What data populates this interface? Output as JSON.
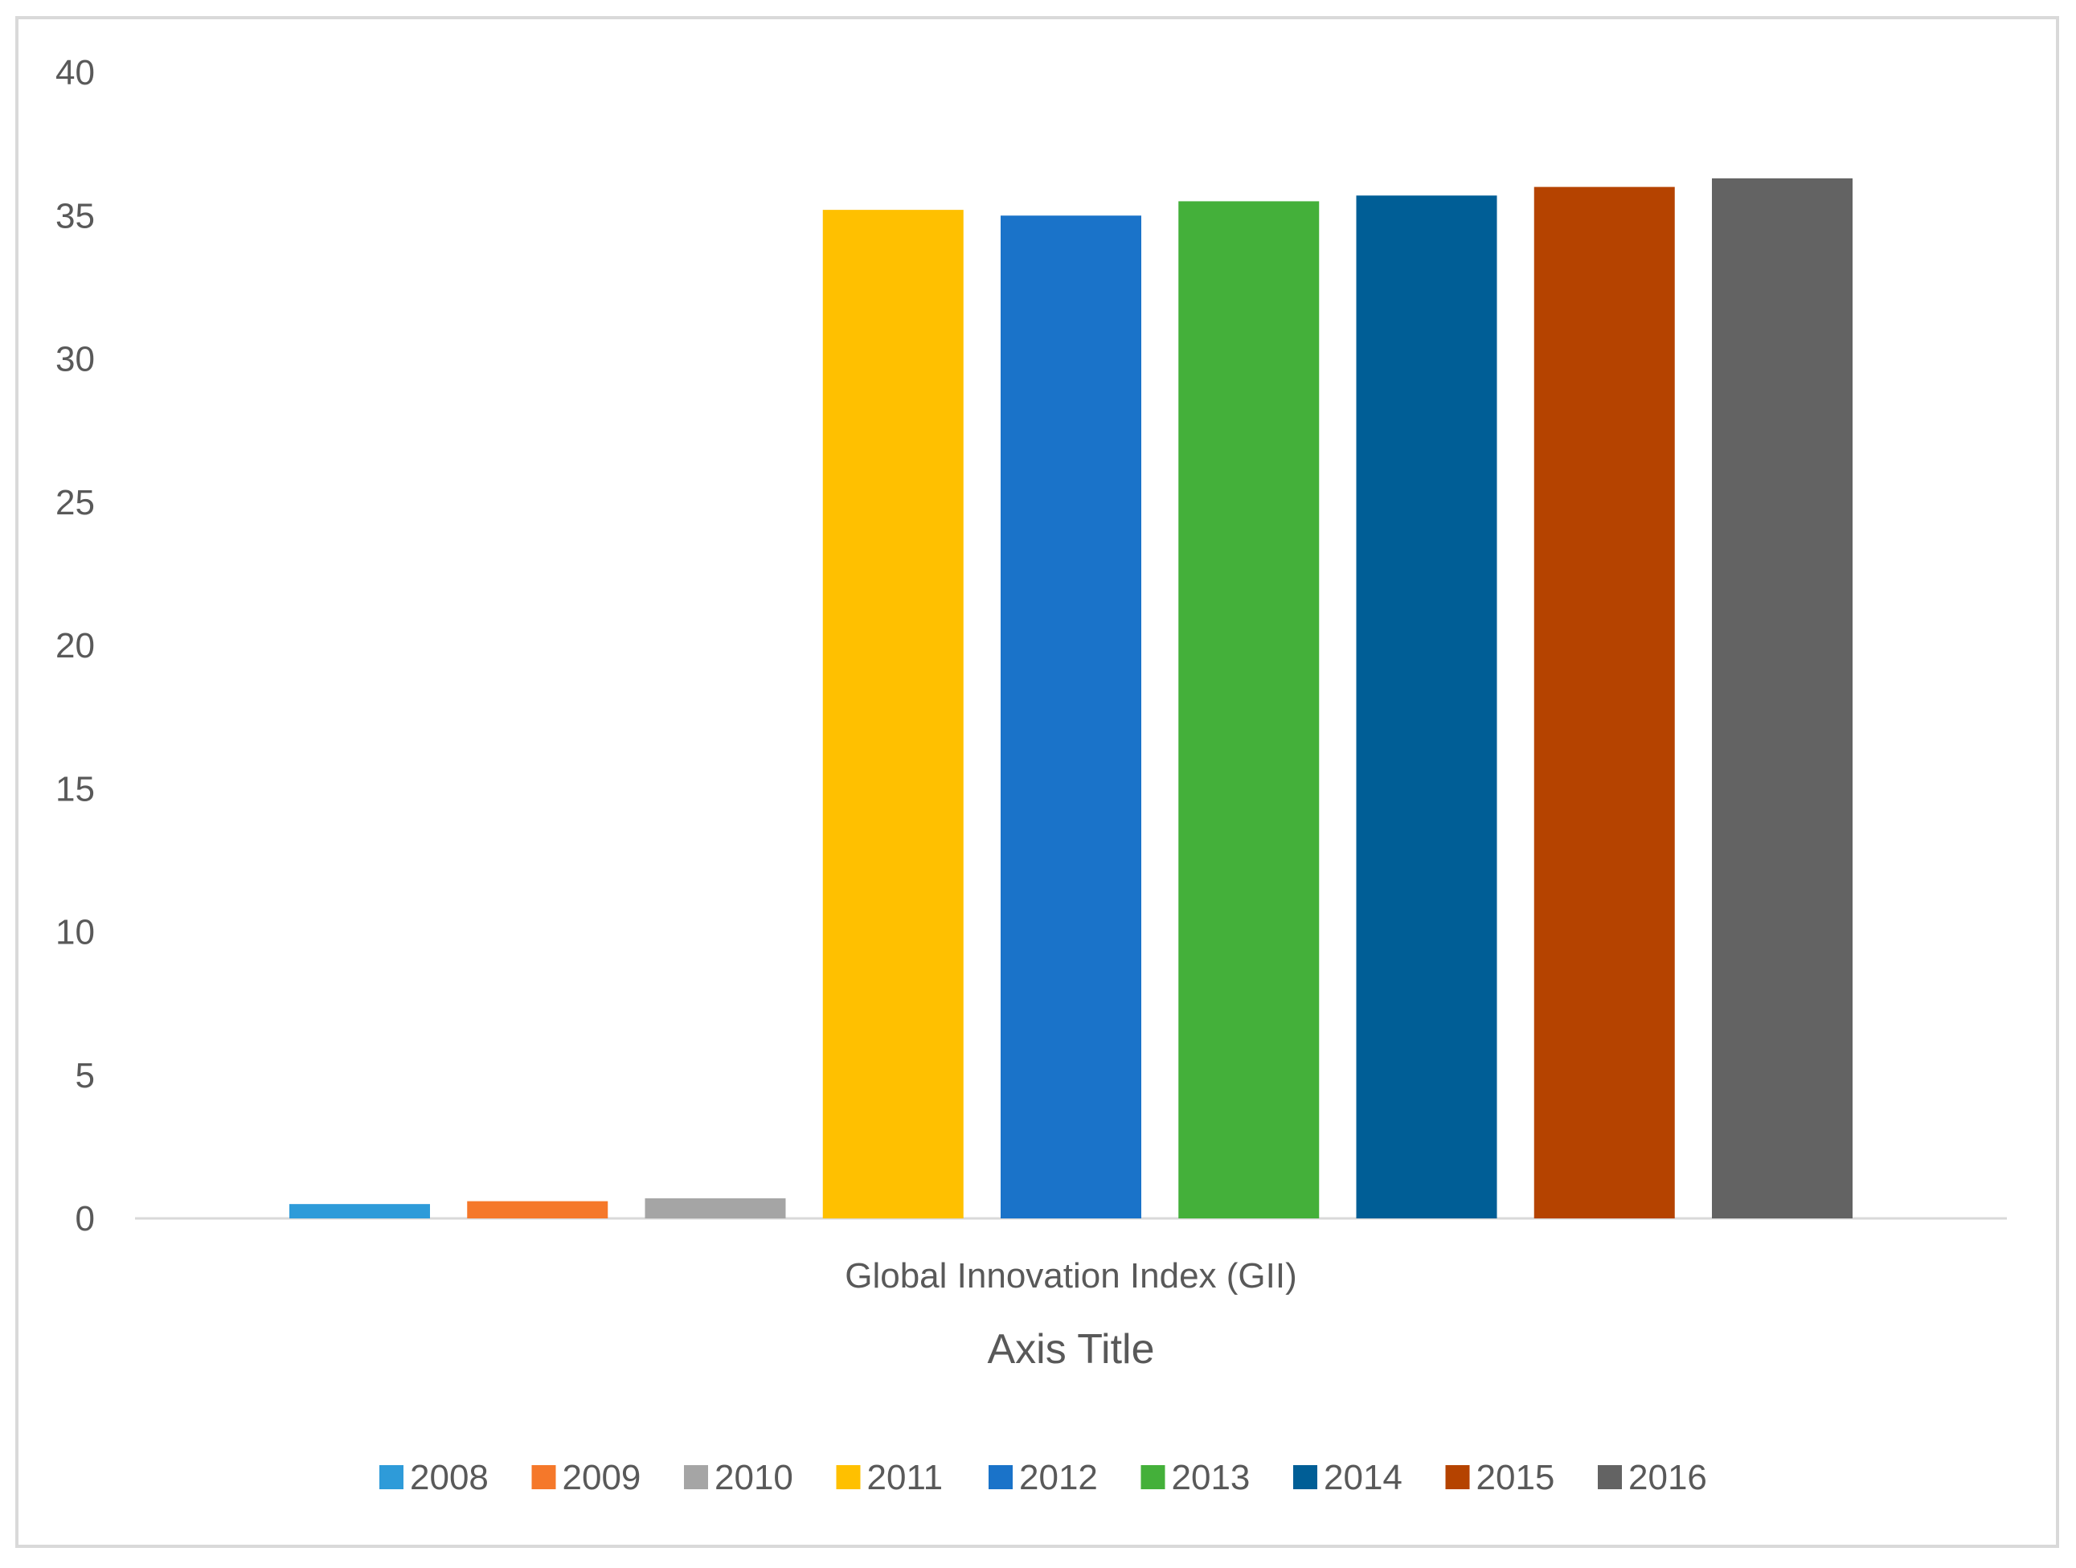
{
  "chart_data": {
    "type": "bar",
    "category": "Global Innovation Index (GII)",
    "xlabel": "Axis Title",
    "ylabel": "",
    "title": "",
    "ylim": [
      0,
      40
    ],
    "yticks": [
      0,
      5,
      10,
      15,
      20,
      25,
      30,
      35,
      40
    ],
    "grid": false,
    "legend_position": "bottom",
    "series": [
      {
        "name": "2008",
        "value": 0.5,
        "color": "#2E9BD9"
      },
      {
        "name": "2009",
        "value": 0.6,
        "color": "#F5782A"
      },
      {
        "name": "2010",
        "value": 0.7,
        "color": "#A5A5A5"
      },
      {
        "name": "2011",
        "value": 35.2,
        "color": "#FFC000"
      },
      {
        "name": "2012",
        "value": 35.0,
        "color": "#1A73C9"
      },
      {
        "name": "2013",
        "value": 35.5,
        "color": "#44B03A"
      },
      {
        "name": "2014",
        "value": 35.7,
        "color": "#005E96"
      },
      {
        "name": "2015",
        "value": 36.0,
        "color": "#B54300"
      },
      {
        "name": "2016",
        "value": 36.3,
        "color": "#636363"
      }
    ]
  }
}
